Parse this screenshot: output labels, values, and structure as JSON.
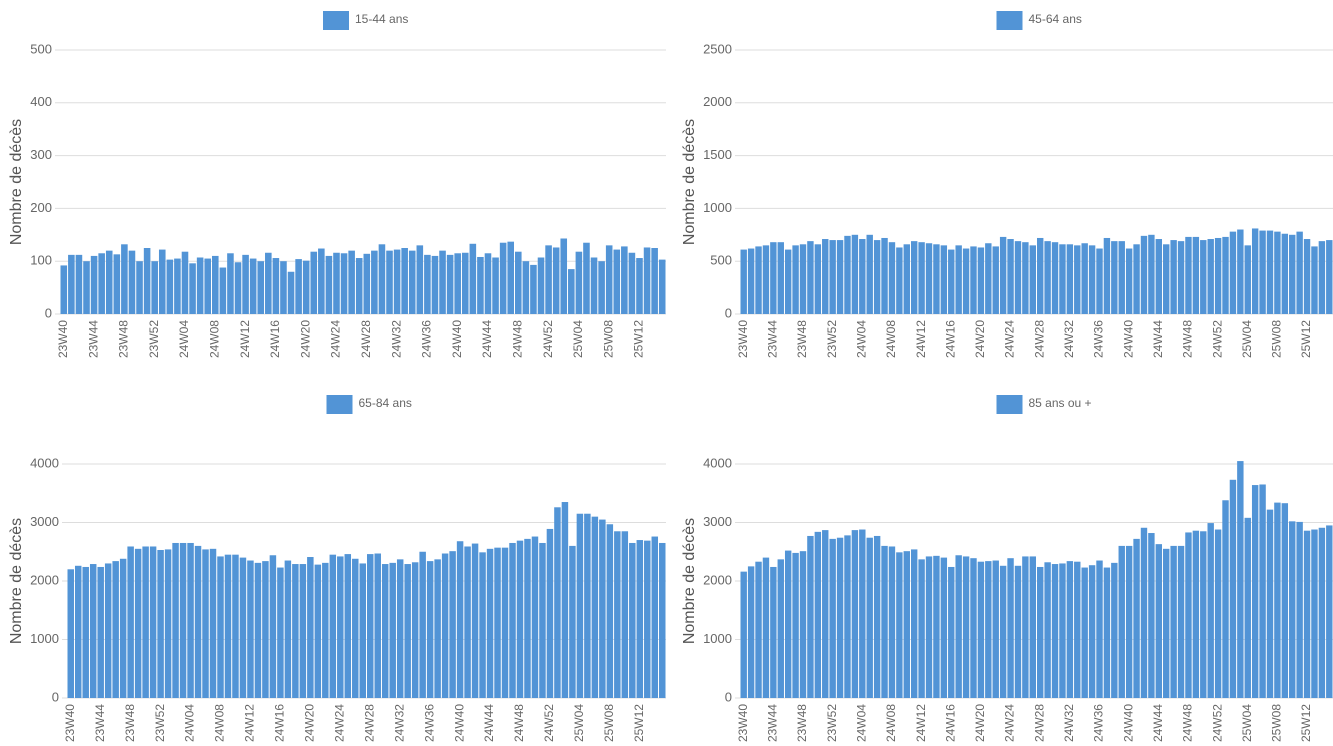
{
  "chart_data": [
    {
      "type": "bar",
      "y_label": "Nombre de décès",
      "grid": true,
      "ylim": [
        0,
        500
      ],
      "yticks": [
        0,
        100,
        200,
        300,
        400,
        500
      ],
      "categories": [
        "23W40",
        null,
        null,
        null,
        "23W44",
        null,
        null,
        null,
        "23W48",
        null,
        null,
        null,
        "23W52",
        null,
        null,
        null,
        "24W04",
        null,
        null,
        null,
        "24W08",
        null,
        null,
        null,
        "24W12",
        null,
        null,
        null,
        "24W16",
        null,
        null,
        null,
        "24W20",
        null,
        null,
        null,
        "24W24",
        null,
        null,
        null,
        "24W28",
        null,
        null,
        null,
        "24W32",
        null,
        null,
        null,
        "24W36",
        null,
        null,
        null,
        "24W40",
        null,
        null,
        null,
        "24W44",
        null,
        null,
        null,
        "24W48",
        null,
        null,
        null,
        "24W52",
        null,
        null,
        null,
        "25W04",
        null,
        null,
        null,
        "25W08",
        null,
        null,
        null,
        "25W12",
        null,
        null,
        null
      ],
      "series": [
        {
          "name": "15-44 ans",
          "color": "#5294d6",
          "values": [
            92,
            112,
            112,
            100,
            110,
            115,
            120,
            113,
            132,
            120,
            100,
            125,
            100,
            122,
            103,
            105,
            118,
            96,
            107,
            105,
            110,
            88,
            115,
            98,
            112,
            105,
            100,
            116,
            106,
            100,
            80,
            104,
            101,
            118,
            124,
            110,
            116,
            115,
            120,
            106,
            114,
            120,
            132,
            120,
            122,
            125,
            120,
            130,
            112,
            110,
            120,
            112,
            115,
            116,
            133,
            108,
            115,
            107,
            135,
            137,
            118,
            100,
            93,
            107,
            130,
            126,
            143,
            85,
            118,
            135,
            107,
            100,
            130,
            122,
            128,
            116,
            106,
            126,
            125,
            103
          ]
        }
      ]
    },
    {
      "type": "bar",
      "y_label": "Nombre de décès",
      "grid": true,
      "ylim": [
        0,
        2500
      ],
      "yticks": [
        0,
        500,
        1000,
        1500,
        2000,
        2500
      ],
      "categories": [
        "23W40",
        null,
        null,
        null,
        "23W44",
        null,
        null,
        null,
        "23W48",
        null,
        null,
        null,
        "23W52",
        null,
        null,
        null,
        "24W04",
        null,
        null,
        null,
        "24W08",
        null,
        null,
        null,
        "24W12",
        null,
        null,
        null,
        "24W16",
        null,
        null,
        null,
        "24W20",
        null,
        null,
        null,
        "24W24",
        null,
        null,
        null,
        "24W28",
        null,
        null,
        null,
        "24W32",
        null,
        null,
        null,
        "24W36",
        null,
        null,
        null,
        "24W40",
        null,
        null,
        null,
        "24W44",
        null,
        null,
        null,
        "24W48",
        null,
        null,
        null,
        "24W52",
        null,
        null,
        null,
        "25W04",
        null,
        null,
        null,
        "25W08",
        null,
        null,
        null,
        "25W12",
        null,
        null,
        null
      ],
      "series": [
        {
          "name": "45-64 ans",
          "color": "#5294d6",
          "values": [
            610,
            620,
            640,
            650,
            680,
            680,
            610,
            650,
            660,
            690,
            660,
            710,
            700,
            700,
            740,
            750,
            710,
            750,
            700,
            720,
            680,
            630,
            660,
            690,
            680,
            670,
            660,
            650,
            610,
            650,
            620,
            640,
            630,
            670,
            640,
            730,
            710,
            690,
            680,
            650,
            720,
            690,
            680,
            660,
            660,
            650,
            670,
            650,
            620,
            720,
            690,
            690,
            620,
            660,
            740,
            750,
            710,
            660,
            700,
            690,
            730,
            730,
            700,
            710,
            720,
            730,
            780,
            800,
            650,
            810,
            790,
            790,
            780,
            760,
            750,
            780,
            710,
            640,
            690,
            700
          ]
        }
      ]
    },
    {
      "type": "bar",
      "y_label": "Nombre de décès",
      "grid": true,
      "ylim": [
        0,
        4000
      ],
      "yticks": [
        0,
        1000,
        2000,
        3000,
        4000
      ],
      "categories": [
        "23W40",
        null,
        null,
        null,
        "23W44",
        null,
        null,
        null,
        "23W48",
        null,
        null,
        null,
        "23W52",
        null,
        null,
        null,
        "24W04",
        null,
        null,
        null,
        "24W08",
        null,
        null,
        null,
        "24W12",
        null,
        null,
        null,
        "24W16",
        null,
        null,
        null,
        "24W20",
        null,
        null,
        null,
        "24W24",
        null,
        null,
        null,
        "24W28",
        null,
        null,
        null,
        "24W32",
        null,
        null,
        null,
        "24W36",
        null,
        null,
        null,
        "24W40",
        null,
        null,
        null,
        "24W44",
        null,
        null,
        null,
        "24W48",
        null,
        null,
        null,
        "24W52",
        null,
        null,
        null,
        "25W04",
        null,
        null,
        null,
        "25W08",
        null,
        null,
        null,
        "25W12",
        null,
        null,
        null
      ],
      "series": [
        {
          "name": "65-84 ans",
          "color": "#5294d6",
          "values": [
            2200,
            2260,
            2240,
            2290,
            2240,
            2300,
            2340,
            2380,
            2590,
            2550,
            2590,
            2590,
            2530,
            2540,
            2650,
            2650,
            2650,
            2600,
            2540,
            2550,
            2420,
            2450,
            2450,
            2400,
            2350,
            2310,
            2340,
            2440,
            2230,
            2350,
            2290,
            2290,
            2410,
            2280,
            2310,
            2450,
            2420,
            2460,
            2380,
            2300,
            2460,
            2470,
            2290,
            2310,
            2370,
            2290,
            2320,
            2500,
            2340,
            2370,
            2470,
            2510,
            2680,
            2590,
            2640,
            2490,
            2550,
            2570,
            2570,
            2650,
            2690,
            2720,
            2760,
            2650,
            2890,
            3260,
            3350,
            2600,
            3150,
            3150,
            3100,
            3050,
            2970,
            2850,
            2850,
            2650,
            2700,
            2690,
            2760,
            2650
          ]
        }
      ]
    },
    {
      "type": "bar",
      "y_label": "Nombre de décès",
      "grid": true,
      "ylim": [
        0,
        4000
      ],
      "yticks": [
        0,
        1000,
        2000,
        3000,
        4000
      ],
      "categories": [
        "23W40",
        null,
        null,
        null,
        "23W44",
        null,
        null,
        null,
        "23W48",
        null,
        null,
        null,
        "23W52",
        null,
        null,
        null,
        "24W04",
        null,
        null,
        null,
        "24W08",
        null,
        null,
        null,
        "24W12",
        null,
        null,
        null,
        "24W16",
        null,
        null,
        null,
        "24W20",
        null,
        null,
        null,
        "24W24",
        null,
        null,
        null,
        "24W28",
        null,
        null,
        null,
        "24W32",
        null,
        null,
        null,
        "24W36",
        null,
        null,
        null,
        "24W40",
        null,
        null,
        null,
        "24W44",
        null,
        null,
        null,
        "24W48",
        null,
        null,
        null,
        "24W52",
        null,
        null,
        null,
        "25W04",
        null,
        null,
        null,
        "25W08",
        null,
        null,
        null,
        "25W12",
        null,
        null,
        null
      ],
      "series": [
        {
          "name": "85 ans ou +",
          "color": "#5294d6",
          "values": [
            2160,
            2250,
            2330,
            2400,
            2240,
            2370,
            2520,
            2480,
            2510,
            2770,
            2840,
            2870,
            2720,
            2740,
            2780,
            2870,
            2880,
            2740,
            2770,
            2600,
            2590,
            2490,
            2510,
            2540,
            2370,
            2420,
            2430,
            2400,
            2240,
            2440,
            2420,
            2390,
            2330,
            2340,
            2350,
            2260,
            2390,
            2260,
            2420,
            2420,
            2240,
            2320,
            2290,
            2300,
            2340,
            2330,
            2230,
            2270,
            2350,
            2230,
            2310,
            2600,
            2600,
            2720,
            2910,
            2820,
            2630,
            2550,
            2600,
            2600,
            2830,
            2860,
            2850,
            2990,
            2880,
            3380,
            3730,
            4050,
            3080,
            3640,
            3650,
            3220,
            3340,
            3330,
            3020,
            3010,
            2860,
            2880,
            2910,
            2950
          ]
        }
      ]
    }
  ]
}
